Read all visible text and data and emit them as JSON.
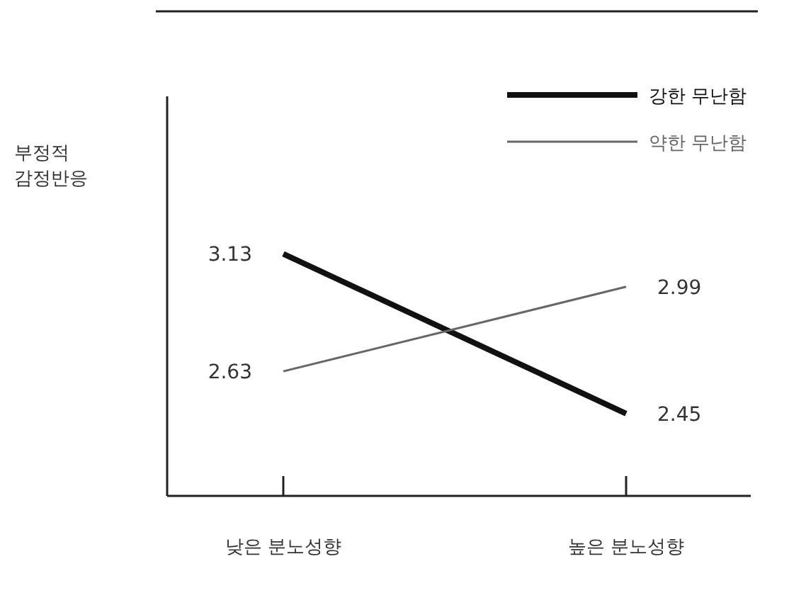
{
  "chart_data": {
    "type": "line",
    "ylabel": "부정적\n감정반응",
    "categories": [
      "낮은 분노성향",
      "높은 분노성향"
    ],
    "ylim": [
      2.1,
      3.8
    ],
    "tick_labels": "x",
    "legend": "top right",
    "data_labels": true,
    "marker": "none",
    "line_style": "solid",
    "series": [
      {
        "name": "강한 무난함",
        "color": "#111111",
        "values": [
          3.13,
          2.45
        ]
      },
      {
        "name": "약한 무난함",
        "color": "#666666",
        "values": [
          2.63,
          2.99
        ]
      }
    ]
  }
}
